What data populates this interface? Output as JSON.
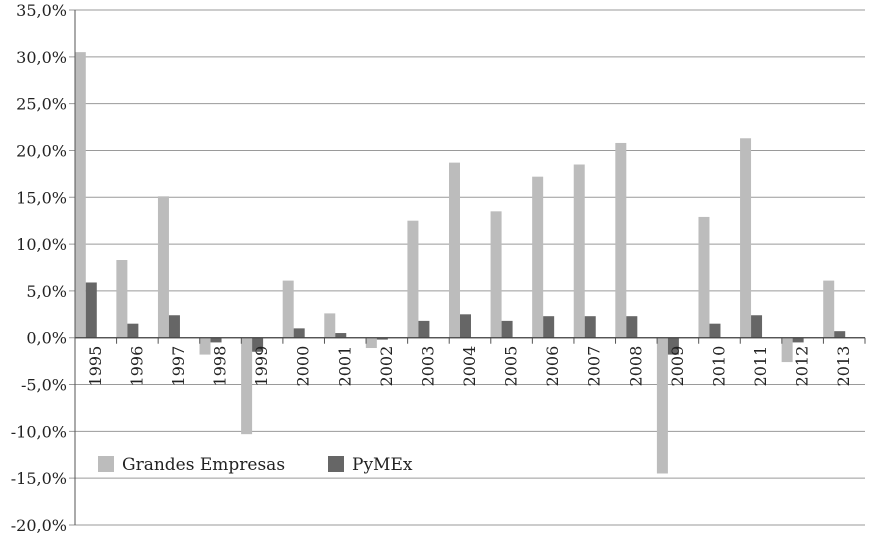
{
  "chart_data": {
    "type": "bar",
    "title": "",
    "xlabel": "",
    "ylabel": "",
    "ylim": [
      -20,
      35
    ],
    "y_tick_step": 5,
    "grid": true,
    "legend_position": "bottom-left inside plot",
    "categories": [
      "1995",
      "1996",
      "1997",
      "1998",
      "1999",
      "2000",
      "2001",
      "2002",
      "2003",
      "2004",
      "2005",
      "2006",
      "2007",
      "2008",
      "2009",
      "2010",
      "2011",
      "2012",
      "2013"
    ],
    "y_tick_labels": [
      "-20,0%",
      "-15,0%",
      "-10,0%",
      "-5,0%",
      "0,0%",
      "5,0%",
      "10,0%",
      "15,0%",
      "20,0%",
      "25,0%",
      "30,0%",
      "35,0%"
    ],
    "series": [
      {
        "name": "Grandes Empresas",
        "color": "#bcbcbc",
        "values": [
          30.5,
          8.3,
          15.1,
          -1.8,
          -10.3,
          6.1,
          2.6,
          -1.1,
          12.5,
          18.7,
          13.5,
          17.2,
          18.5,
          20.8,
          -14.5,
          12.9,
          21.3,
          -2.6,
          6.1
        ]
      },
      {
        "name": "PyMEx",
        "color": "#666666",
        "values": [
          5.9,
          1.5,
          2.4,
          -0.5,
          -1.5,
          1.0,
          0.5,
          -0.2,
          1.8,
          2.5,
          1.8,
          2.3,
          2.3,
          2.3,
          -1.8,
          1.5,
          2.4,
          -0.5,
          0.7
        ]
      }
    ]
  }
}
